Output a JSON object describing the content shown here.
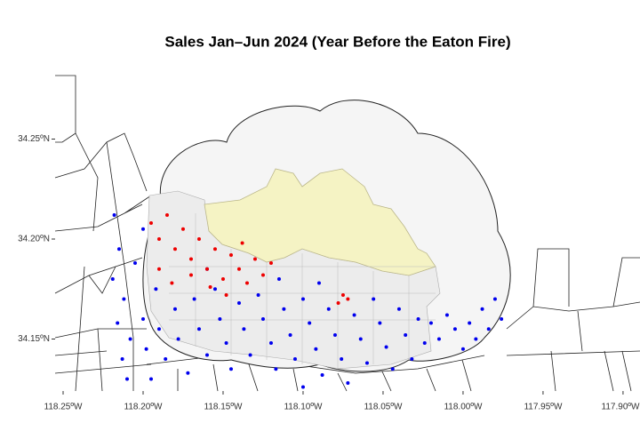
{
  "chart_data": {
    "type": "scatter",
    "title": "Sales Jan–Jun 2024 (Year Before the Eaton Fire)",
    "xlim": [
      -118.255,
      -117.8894
    ],
    "ylim": [
      34.124,
      34.284
    ],
    "xticks": [
      {
        "value": -118.25,
        "label": "118.25ºW"
      },
      {
        "value": -118.2,
        "label": "118.20ºW"
      },
      {
        "value": -118.15,
        "label": "118.15ºW"
      },
      {
        "value": -118.1,
        "label": "118.10ºW"
      },
      {
        "value": -118.05,
        "label": "118.05ºW"
      },
      {
        "value": -118.0,
        "label": "118.00ºW"
      },
      {
        "value": -117.95,
        "label": "117.95ºW"
      },
      {
        "value": -117.9,
        "label": "117.90ºW"
      }
    ],
    "yticks": [
      {
        "value": 34.15,
        "label": "34.15ºN"
      },
      {
        "value": 34.2,
        "label": "34.20ºN"
      },
      {
        "value": 34.25,
        "label": "34.25ºN"
      }
    ],
    "series": [
      {
        "color": "#0000ee",
        "x": [
          -118.218,
          -118.215,
          -118.219,
          -118.212,
          -118.216,
          -118.208,
          -118.213,
          -118.205,
          -118.2,
          -118.198,
          -118.192,
          -118.19,
          -118.186,
          -118.18,
          -118.178,
          -118.172,
          -118.168,
          -118.165,
          -118.16,
          -118.155,
          -118.152,
          -118.148,
          -118.145,
          -118.14,
          -118.137,
          -118.133,
          -118.128,
          -118.125,
          -118.12,
          -118.117,
          -118.112,
          -118.108,
          -118.105,
          -118.1,
          -118.096,
          -118.092,
          -118.088,
          -118.084,
          -118.08,
          -118.076,
          -118.072,
          -118.068,
          -118.064,
          -118.06,
          -118.056,
          -118.052,
          -118.048,
          -118.044,
          -118.04,
          -118.036,
          -118.032,
          -118.028,
          -118.024,
          -118.02,
          -118.015,
          -118.01,
          -118.005,
          -118.0,
          -117.996,
          -117.992,
          -117.988,
          -117.984,
          -117.98,
          -117.976,
          -118.2,
          -118.21,
          -118.195,
          -118.1,
          -118.16,
          -118.09,
          -118.115
        ],
        "values": [
          34.212,
          34.195,
          34.18,
          34.17,
          34.158,
          34.15,
          34.14,
          34.188,
          34.16,
          34.145,
          34.175,
          34.155,
          34.14,
          34.165,
          34.15,
          34.133,
          34.17,
          34.155,
          34.142,
          34.175,
          34.16,
          34.148,
          34.135,
          34.168,
          34.155,
          34.142,
          34.172,
          34.16,
          34.148,
          34.135,
          34.165,
          34.152,
          34.14,
          34.17,
          34.158,
          34.145,
          34.132,
          34.165,
          34.152,
          34.14,
          34.128,
          34.162,
          34.15,
          34.138,
          34.17,
          34.158,
          34.146,
          34.135,
          34.165,
          34.152,
          34.14,
          34.16,
          34.148,
          34.158,
          34.15,
          34.162,
          34.155,
          34.145,
          34.158,
          34.15,
          34.165,
          34.155,
          34.17,
          34.16,
          34.205,
          34.13,
          34.13,
          34.126,
          34.185,
          34.178,
          34.18
        ]
      },
      {
        "color": "#ee0000",
        "x": [
          -118.195,
          -118.19,
          -118.185,
          -118.18,
          -118.175,
          -118.17,
          -118.165,
          -118.16,
          -118.155,
          -118.15,
          -118.145,
          -118.14,
          -118.135,
          -118.13,
          -118.125,
          -118.12,
          -118.17,
          -118.158,
          -118.148,
          -118.19,
          -118.182,
          -118.138,
          -118.075,
          -118.078,
          -118.072
        ],
        "values": [
          34.208,
          34.2,
          34.212,
          34.195,
          34.205,
          34.19,
          34.2,
          34.185,
          34.195,
          34.18,
          34.192,
          34.185,
          34.178,
          34.19,
          34.182,
          34.188,
          34.182,
          34.176,
          34.172,
          34.185,
          34.178,
          34.198,
          34.172,
          34.168,
          34.17
        ]
      }
    ]
  }
}
